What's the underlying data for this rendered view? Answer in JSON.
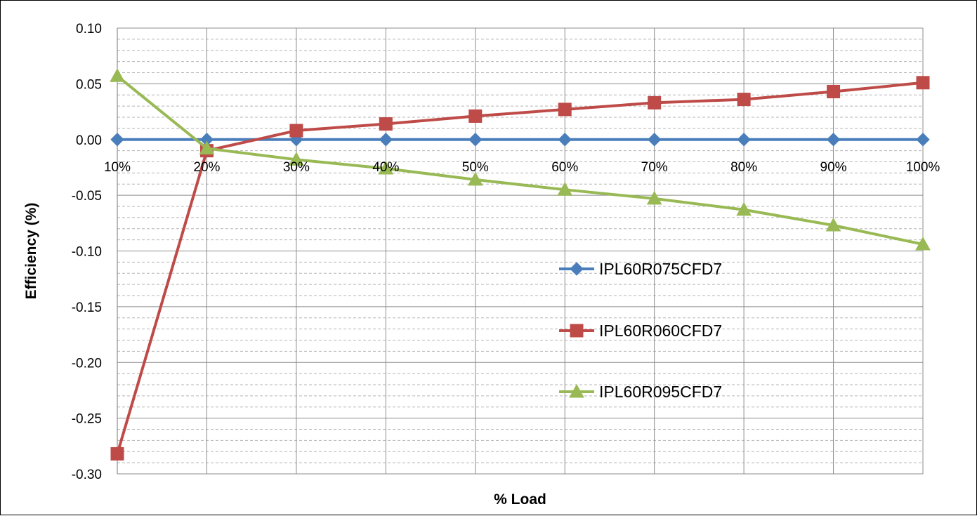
{
  "chart_data": {
    "type": "line",
    "title": "",
    "xlabel": "% Load",
    "ylabel": "Efficiency (%)",
    "categories": [
      "10%",
      "20%",
      "30%",
      "40%",
      "50%",
      "60%",
      "70%",
      "80%",
      "90%",
      "100%"
    ],
    "ylim": [
      -0.3,
      0.1
    ],
    "yticks": [
      "-0.30",
      "-0.25",
      "-0.20",
      "-0.15",
      "-0.10",
      "-0.05",
      "0.00",
      "0.05",
      "0.10"
    ],
    "ytick_values": [
      -0.3,
      -0.25,
      -0.2,
      -0.15,
      -0.1,
      -0.05,
      0.0,
      0.05,
      0.1
    ],
    "grid": true,
    "minor_grid": true,
    "legend_position": "right",
    "series": [
      {
        "name": "IPL60R075CFD7",
        "color": "#4A7EBB",
        "marker": "diamond",
        "values": [
          0.0,
          0.0,
          0.0,
          0.0,
          0.0,
          0.0,
          0.0,
          0.0,
          0.0,
          0.0
        ]
      },
      {
        "name": "IPL60R060CFD7",
        "color": "#BE4B48",
        "marker": "square",
        "values": [
          -0.282,
          -0.01,
          0.008,
          0.014,
          0.021,
          0.027,
          0.033,
          0.036,
          0.043,
          0.051
        ]
      },
      {
        "name": "IPL60R095CFD7",
        "color": "#98B954",
        "marker": "triangle",
        "values": [
          0.057,
          -0.008,
          -0.018,
          -0.026,
          -0.036,
          -0.045,
          -0.053,
          -0.063,
          -0.077,
          -0.094
        ]
      }
    ]
  }
}
